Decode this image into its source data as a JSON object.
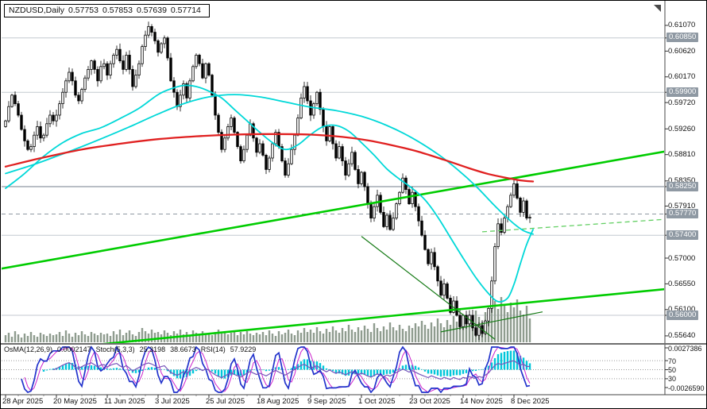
{
  "header": {
    "symbol_period": "NZDUSD,Daily",
    "open": "0.57753",
    "high": "0.57853",
    "low": "0.57639",
    "close": "0.57714"
  },
  "colors": {
    "bull": "#ffffff",
    "bear": "#000000",
    "outline": "#000000",
    "volume": "#8f9c8f",
    "ma_red": "#e02020",
    "ma_cyan": "#00d8d8",
    "trend_green": "#00cc00",
    "trend_dark_green": "#157a15",
    "trend_dashed_green": "#63cf63",
    "level_line": "#c4cad0",
    "level_main": "#8f98a2",
    "level_box_bg": "#8f99a3",
    "level_box_text": "#ffffff",
    "osma": "#00c6da",
    "stoch_main": "#2233cc",
    "stoch_signal": "#cc22cc",
    "rsi": "#7755bb",
    "axis_text": "#111111",
    "separator": "#6e6e6e",
    "grid_dotted": "#9a9a9a"
  },
  "chart_data": {
    "type": "candlestick",
    "symbol": "NZDUSD",
    "timeframe": "Daily",
    "current_bar": {
      "open": 0.57753,
      "high": 0.57853,
      "low": 0.57639,
      "close": 0.57714
    },
    "price_axis": {
      "min": 0.5551,
      "max": 0.615,
      "ticks": [
        {
          "text": "0.61070",
          "price": 0.6107
        },
        {
          "text": "0.60620",
          "price": 0.6062
        },
        {
          "text": "0.60170",
          "price": 0.6017
        },
        {
          "text": "0.59720",
          "price": 0.5972
        },
        {
          "text": "0.59260",
          "price": 0.5926
        },
        {
          "text": "0.58810",
          "price": 0.5881
        },
        {
          "text": "0.58350",
          "price": 0.5835
        },
        {
          "text": "0.57910",
          "price": 0.5791
        },
        {
          "text": "0.57000",
          "price": 0.57
        },
        {
          "text": "0.56550",
          "price": 0.5655
        },
        {
          "text": "0.56100",
          "price": 0.561
        },
        {
          "text": "0.55640",
          "price": 0.5564
        }
      ],
      "level_boxes": [
        {
          "text": "0.60850",
          "price": 0.6085,
          "line": "solid"
        },
        {
          "text": "0.59900",
          "price": 0.599,
          "line": "solid"
        },
        {
          "text": "0.58250",
          "price": 0.5825,
          "line": "strong"
        },
        {
          "text": "0.57770",
          "price": 0.5777,
          "line": "dashed"
        },
        {
          "text": "0.57400",
          "price": 0.574,
          "line": "solid"
        },
        {
          "text": "0.56000",
          "price": 0.56,
          "line": "solid"
        }
      ]
    },
    "x_labels": [
      {
        "label": "28 Apr 2025",
        "index": 0
      },
      {
        "label": "20 May 2025",
        "index": 16
      },
      {
        "label": "11 Jun 2025",
        "index": 32
      },
      {
        "label": "3 Jul 2025",
        "index": 48
      },
      {
        "label": "25 Jul 2025",
        "index": 64
      },
      {
        "label": "18 Aug 2025",
        "index": 80
      },
      {
        "label": "9 Sep 2025",
        "index": 96
      },
      {
        "label": "1 Oct 2025",
        "index": 112
      },
      {
        "label": "23 Oct 2025",
        "index": 128
      },
      {
        "label": "14 Nov 2025",
        "index": 144
      },
      {
        "label": "8 Dec 2025",
        "index": 160
      }
    ],
    "candles": {
      "first_open": 0.593,
      "closes": [
        0.594,
        0.5965,
        0.5985,
        0.597,
        0.595,
        0.5925,
        0.5905,
        0.589,
        0.5895,
        0.5915,
        0.593,
        0.591,
        0.5915,
        0.5935,
        0.595,
        0.594,
        0.595,
        0.597,
        0.599,
        0.601,
        0.6025,
        0.601,
        0.5985,
        0.5975,
        0.5995,
        0.6015,
        0.603,
        0.6045,
        0.603,
        0.601,
        0.6035,
        0.604,
        0.602,
        0.604,
        0.6055,
        0.6065,
        0.6045,
        0.603,
        0.6055,
        0.603,
        0.6,
        0.602,
        0.604,
        0.607,
        0.609,
        0.6105,
        0.6095,
        0.608,
        0.606,
        0.6075,
        0.6085,
        0.605,
        0.601,
        0.599,
        0.5965,
        0.5985,
        0.6005,
        0.598,
        0.601,
        0.6035,
        0.6055,
        0.604,
        0.6015,
        0.604,
        0.602,
        0.5985,
        0.595,
        0.592,
        0.589,
        0.591,
        0.593,
        0.5945,
        0.592,
        0.5895,
        0.587,
        0.589,
        0.5915,
        0.5935,
        0.591,
        0.5885,
        0.59,
        0.588,
        0.5855,
        0.5875,
        0.59,
        0.592,
        0.5895,
        0.587,
        0.5845,
        0.5865,
        0.589,
        0.5915,
        0.5945,
        0.598,
        0.6,
        0.5975,
        0.595,
        0.597,
        0.599,
        0.596,
        0.593,
        0.5905,
        0.593,
        0.59,
        0.5875,
        0.5895,
        0.587,
        0.5845,
        0.5865,
        0.5885,
        0.5855,
        0.583,
        0.585,
        0.5825,
        0.5795,
        0.577,
        0.579,
        0.581,
        0.578,
        0.5755,
        0.5775,
        0.575,
        0.577,
        0.5795,
        0.5815,
        0.584,
        0.582,
        0.5795,
        0.5815,
        0.579,
        0.5765,
        0.574,
        0.5715,
        0.569,
        0.571,
        0.5685,
        0.566,
        0.5635,
        0.5655,
        0.563,
        0.5605,
        0.5625,
        0.56,
        0.558,
        0.56,
        0.5585,
        0.56,
        0.5578,
        0.5565,
        0.5582,
        0.5568,
        0.559,
        0.5612,
        0.566,
        0.572,
        0.576,
        0.5745,
        0.577,
        0.579,
        0.581,
        0.583,
        0.5805,
        0.578,
        0.58,
        0.577,
        0.57714
      ],
      "volumes": [
        9,
        12,
        7,
        14,
        10,
        6,
        11,
        8,
        13,
        9,
        7,
        12,
        10,
        8,
        11,
        9,
        10,
        13,
        8,
        15,
        11,
        7,
        12,
        9,
        14,
        10,
        8,
        13,
        11,
        9,
        12,
        10,
        11,
        8,
        14,
        10,
        16,
        9,
        12,
        15,
        10,
        8,
        13,
        18,
        14,
        11,
        16,
        12,
        13,
        10,
        15,
        12,
        9,
        14,
        11,
        16,
        10,
        13,
        9,
        15,
        12,
        10,
        14,
        11,
        12,
        9,
        13,
        16,
        11,
        14,
        10,
        12,
        15,
        9,
        13,
        10,
        14,
        11,
        9,
        12,
        10,
        13,
        9,
        15,
        11,
        8,
        14,
        10,
        12,
        16,
        11,
        9,
        15,
        12,
        18,
        13,
        16,
        12,
        19,
        14,
        11,
        17,
        13,
        20,
        15,
        12,
        18,
        14,
        22,
        16,
        13,
        19,
        15,
        21,
        17,
        13,
        24,
        18,
        14,
        20,
        16,
        25,
        19,
        15,
        22,
        17,
        14,
        21,
        18,
        24,
        20,
        27,
        22,
        17,
        25,
        20,
        30,
        24,
        19,
        28,
        22,
        33,
        26,
        21,
        30,
        25,
        35,
        28,
        40,
        32,
        26,
        38,
        30,
        45,
        52,
        42,
        57,
        48,
        38,
        50,
        44,
        54,
        40,
        35,
        46,
        30
      ]
    },
    "overlays": {
      "ma_red": [
        [
          0,
          0.586
        ],
        [
          12,
          0.5876
        ],
        [
          24,
          0.589
        ],
        [
          36,
          0.59
        ],
        [
          48,
          0.5908
        ],
        [
          60,
          0.5913
        ],
        [
          72,
          0.5916
        ],
        [
          84,
          0.5917
        ],
        [
          96,
          0.5916
        ],
        [
          106,
          0.5912
        ],
        [
          114,
          0.5906
        ],
        [
          122,
          0.5897
        ],
        [
          130,
          0.5886
        ],
        [
          138,
          0.5872
        ],
        [
          146,
          0.5857
        ],
        [
          152,
          0.5847
        ],
        [
          158,
          0.584
        ],
        [
          162,
          0.5836
        ],
        [
          166,
          0.5834
        ]
      ],
      "ma_cyan_slow": [
        [
          0,
          0.5848
        ],
        [
          8,
          0.5862
        ],
        [
          16,
          0.5878
        ],
        [
          24,
          0.5895
        ],
        [
          32,
          0.5913
        ],
        [
          40,
          0.5932
        ],
        [
          48,
          0.5952
        ],
        [
          56,
          0.597
        ],
        [
          64,
          0.5982
        ],
        [
          72,
          0.5986
        ],
        [
          80,
          0.5982
        ],
        [
          88,
          0.5973
        ],
        [
          96,
          0.5964
        ],
        [
          104,
          0.5958
        ],
        [
          112,
          0.5948
        ],
        [
          120,
          0.5932
        ],
        [
          128,
          0.591
        ],
        [
          136,
          0.5882
        ],
        [
          142,
          0.5856
        ],
        [
          148,
          0.5826
        ],
        [
          153,
          0.5797
        ],
        [
          157,
          0.5775
        ],
        [
          160,
          0.576
        ],
        [
          163,
          0.5748
        ],
        [
          166,
          0.5742
        ]
      ],
      "ma_cyan_fast": [
        [
          0,
          0.5822
        ],
        [
          6,
          0.5848
        ],
        [
          12,
          0.5878
        ],
        [
          18,
          0.5902
        ],
        [
          24,
          0.5918
        ],
        [
          30,
          0.5928
        ],
        [
          36,
          0.5944
        ],
        [
          42,
          0.5962
        ],
        [
          48,
          0.5986
        ],
        [
          52,
          0.5996
        ],
        [
          56,
          0.6002
        ],
        [
          60,
          0.6
        ],
        [
          64,
          0.5992
        ],
        [
          68,
          0.598
        ],
        [
          72,
          0.596
        ],
        [
          76,
          0.594
        ],
        [
          80,
          0.592
        ],
        [
          84,
          0.5902
        ],
        [
          88,
          0.589
        ],
        [
          92,
          0.5898
        ],
        [
          96,
          0.5916
        ],
        [
          100,
          0.593
        ],
        [
          104,
          0.5932
        ],
        [
          108,
          0.5922
        ],
        [
          112,
          0.5902
        ],
        [
          116,
          0.588
        ],
        [
          120,
          0.5856
        ],
        [
          124,
          0.5838
        ],
        [
          128,
          0.5822
        ],
        [
          132,
          0.5802
        ],
        [
          136,
          0.5772
        ],
        [
          140,
          0.5736
        ],
        [
          144,
          0.57
        ],
        [
          148,
          0.5666
        ],
        [
          152,
          0.5638
        ],
        [
          155,
          0.5624
        ],
        [
          158,
          0.563
        ],
        [
          160,
          0.5654
        ],
        [
          162,
          0.569
        ],
        [
          164,
          0.5724
        ],
        [
          166,
          0.575
        ]
      ],
      "trendline_upper_green": [
        [
          -2,
          0.5681
        ],
        [
          208,
          0.5887
        ]
      ],
      "trendline_lower_green": [
        [
          -2,
          0.5532
        ],
        [
          208,
          0.5646
        ]
      ],
      "trendline_down_minor": [
        [
          112,
          0.5738
        ],
        [
          154,
          0.5558
        ]
      ],
      "trendline_support_minor": [
        [
          137,
          0.5571
        ],
        [
          169,
          0.5606
        ]
      ],
      "trendline_dashed_green": [
        [
          150,
          0.5746
        ],
        [
          208,
          0.5768
        ]
      ]
    },
    "indicators": {
      "label": {
        "osma_name": "OsMA(12,26,9)",
        "osma_value": "0.0002147",
        "stoch_name": "Stoch(5,3,3)",
        "stoch_value1": "25.3198",
        "stoch_value2": "38.6673",
        "rsi_name": "RSI(14)",
        "rsi_value": "57.9229"
      },
      "axis": {
        "top": "0.0027386",
        "bottom": "-0.0026590",
        "levels": [
          "70",
          "50",
          "30"
        ]
      }
    }
  }
}
